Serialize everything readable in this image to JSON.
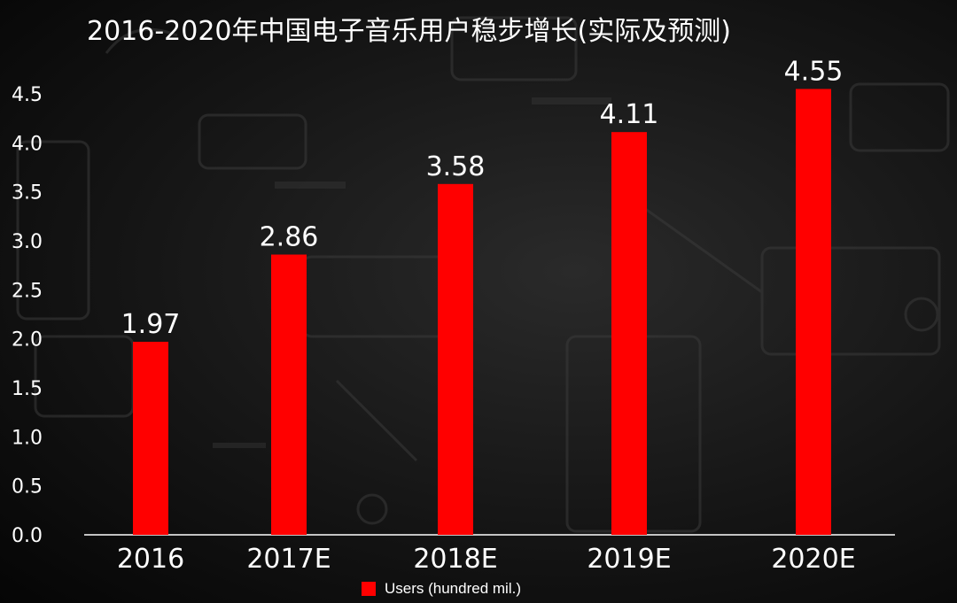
{
  "chart_data": {
    "type": "bar",
    "title": "2016-2020年中国电子音乐用户稳步增长(实际及预测)",
    "categories": [
      "2016",
      "2017E",
      "2018E",
      "2019E",
      "2020E"
    ],
    "series": [
      {
        "name": "Users  (hundred mil.)",
        "values": [
          1.97,
          2.86,
          3.58,
          4.11,
          4.55
        ],
        "color": "#ff0000"
      }
    ],
    "data_labels": [
      "1.97",
      "2.86",
      "3.58",
      "4.11",
      "4.55"
    ],
    "yticks": [
      "0.0",
      "0.5",
      "1.0",
      "1.5",
      "2.0",
      "2.5",
      "3.0",
      "3.5",
      "4.0",
      "4.5"
    ],
    "ylim": [
      0,
      4.5
    ],
    "xlabel": "",
    "ylabel": "",
    "grid": false,
    "legend_position": "bottom-center"
  },
  "colors": {
    "background": "#000000",
    "bar": "#ff0000",
    "text": "#ffffff",
    "axis": "#ffffff"
  }
}
